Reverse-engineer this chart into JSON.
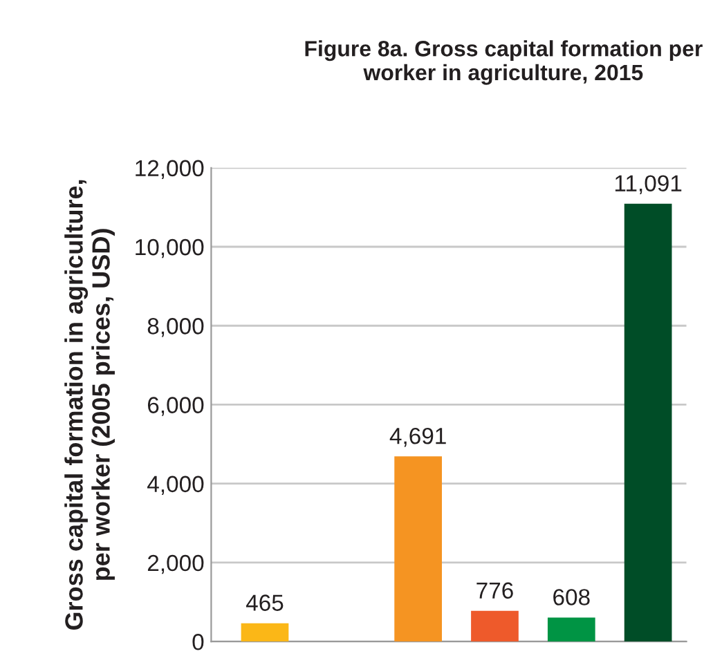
{
  "chart_data": {
    "type": "bar",
    "title": "Figure 8a. Gross capital formation per\nworker in agriculture, 2015",
    "ylabel": "Gross capital formation in agriculture,\nper worker (2005 prices, USD)",
    "categories": [
      null,
      null,
      null,
      null,
      null,
      null
    ],
    "values": [
      465,
      null,
      4691,
      776,
      608,
      11091
    ],
    "colors": [
      "#fbb717",
      "#999999",
      "#f59422",
      "#ee5a2b",
      "#009444",
      "#004d27"
    ],
    "value_labels": [
      "465",
      null,
      "4,691",
      "776",
      "608",
      "11,091"
    ],
    "ylim": [
      0,
      12000
    ],
    "yticks": [
      {
        "value": 0,
        "label": "0"
      },
      {
        "value": 2000,
        "label": "2,000"
      },
      {
        "value": 4000,
        "label": "4,000"
      },
      {
        "value": 6000,
        "label": "6,000"
      },
      {
        "value": 8000,
        "label": "8,000"
      },
      {
        "value": 10000,
        "label": "10,000"
      },
      {
        "value": 12000,
        "label": "12,000"
      }
    ],
    "grid": "y",
    "tick_labels": "y"
  }
}
